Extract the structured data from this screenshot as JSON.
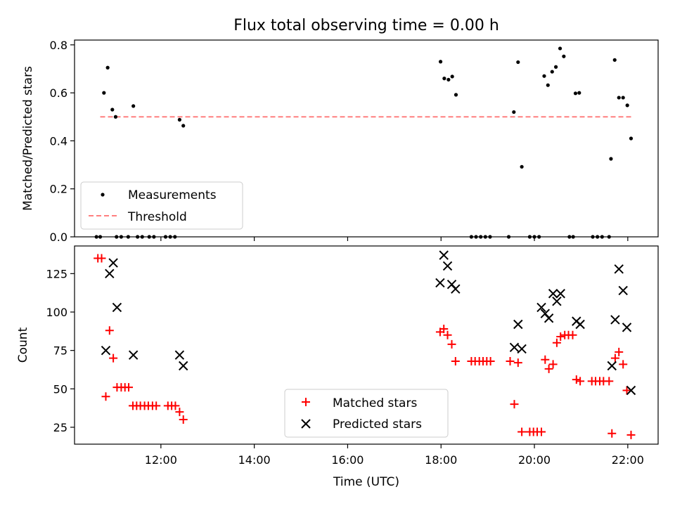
{
  "title": "Flux total observing time = 0.00 h",
  "chart_data": [
    {
      "type": "scatter",
      "ylabel": "Matched/Predicted stars",
      "ylim": [
        0,
        0.82
      ],
      "yticks": [
        "0.0",
        "0.2",
        "0.4",
        "0.6",
        "0.8"
      ],
      "xlim_hours": [
        10.15,
        22.65
      ],
      "legend": {
        "placement": "lower-left",
        "entries": [
          "Measurements",
          "Threshold"
        ]
      },
      "threshold": {
        "name": "Threshold",
        "value": 0.5,
        "x_range_hours": [
          10.7,
          22.1
        ],
        "color": "#ff7f7f"
      },
      "series": [
        {
          "name": "Measurements",
          "color": "#000000",
          "points": [
            [
              10.78,
              0.6
            ],
            [
              10.86,
              0.705
            ],
            [
              10.96,
              0.53
            ],
            [
              11.03,
              0.5
            ],
            [
              11.41,
              0.545
            ],
            [
              12.4,
              0.488
            ],
            [
              12.48,
              0.463
            ],
            [
              17.99,
              0.73
            ],
            [
              18.07,
              0.66
            ],
            [
              18.16,
              0.655
            ],
            [
              18.24,
              0.668
            ],
            [
              18.32,
              0.592
            ],
            [
              19.56,
              0.52
            ],
            [
              19.65,
              0.728
            ],
            [
              19.73,
              0.292
            ],
            [
              20.21,
              0.67
            ],
            [
              20.29,
              0.632
            ],
            [
              20.38,
              0.688
            ],
            [
              20.46,
              0.708
            ],
            [
              20.55,
              0.785
            ],
            [
              20.63,
              0.752
            ],
            [
              20.88,
              0.598
            ],
            [
              20.96,
              0.6
            ],
            [
              21.64,
              0.325
            ],
            [
              21.72,
              0.737
            ],
            [
              21.81,
              0.58
            ],
            [
              21.9,
              0.58
            ],
            [
              21.99,
              0.548
            ],
            [
              22.07,
              0.41
            ],
            [
              10.62,
              0
            ],
            [
              10.7,
              0
            ],
            [
              11.05,
              0
            ],
            [
              11.15,
              0
            ],
            [
              11.3,
              0
            ],
            [
              11.5,
              0
            ],
            [
              11.6,
              0
            ],
            [
              11.75,
              0
            ],
            [
              11.85,
              0
            ],
            [
              12.1,
              0
            ],
            [
              12.2,
              0
            ],
            [
              12.3,
              0
            ],
            [
              18.65,
              0
            ],
            [
              18.75,
              0
            ],
            [
              18.85,
              0
            ],
            [
              18.95,
              0
            ],
            [
              19.05,
              0
            ],
            [
              19.45,
              0
            ],
            [
              19.9,
              0
            ],
            [
              20.0,
              0
            ],
            [
              20.1,
              0
            ],
            [
              20.75,
              0
            ],
            [
              20.83,
              0
            ],
            [
              21.25,
              0
            ],
            [
              21.35,
              0
            ],
            [
              21.45,
              0
            ],
            [
              21.6,
              0
            ]
          ]
        }
      ]
    },
    {
      "type": "scatter",
      "xlabel": "Time (UTC)",
      "ylabel": "Count",
      "ylim": [
        14,
        143
      ],
      "yticks": [
        "25",
        "50",
        "75",
        "100",
        "125"
      ],
      "xticks": [
        "12:00",
        "14:00",
        "16:00",
        "18:00",
        "20:00",
        "22:00"
      ],
      "xlim_hours": [
        10.15,
        22.65
      ],
      "legend": {
        "placement": "lower-center",
        "entries": [
          "Matched stars",
          "Predicted stars"
        ]
      },
      "series": [
        {
          "name": "Matched stars",
          "marker": "plus",
          "color": "#ff0000",
          "points": [
            [
              10.65,
              135
            ],
            [
              10.73,
              135
            ],
            [
              10.82,
              45
            ],
            [
              10.9,
              88
            ],
            [
              10.98,
              70
            ],
            [
              11.06,
              51
            ],
            [
              11.15,
              51
            ],
            [
              11.23,
              51
            ],
            [
              11.31,
              51
            ],
            [
              11.4,
              39
            ],
            [
              11.48,
              39
            ],
            [
              11.56,
              39
            ],
            [
              11.65,
              39
            ],
            [
              11.73,
              39
            ],
            [
              11.82,
              39
            ],
            [
              11.9,
              39
            ],
            [
              12.15,
              39
            ],
            [
              12.23,
              39
            ],
            [
              12.31,
              39
            ],
            [
              12.4,
              35
            ],
            [
              12.48,
              30
            ],
            [
              17.98,
              87
            ],
            [
              18.06,
              89
            ],
            [
              18.14,
              85
            ],
            [
              18.23,
              79
            ],
            [
              18.31,
              68
            ],
            [
              18.65,
              68
            ],
            [
              18.73,
              68
            ],
            [
              18.82,
              68
            ],
            [
              18.9,
              68
            ],
            [
              18.98,
              68
            ],
            [
              19.06,
              68
            ],
            [
              19.48,
              68
            ],
            [
              19.57,
              40
            ],
            [
              19.65,
              67
            ],
            [
              19.73,
              22
            ],
            [
              19.9,
              22
            ],
            [
              19.98,
              22
            ],
            [
              20.06,
              22
            ],
            [
              20.15,
              22
            ],
            [
              20.23,
              69
            ],
            [
              20.31,
              63
            ],
            [
              20.4,
              66
            ],
            [
              20.48,
              80
            ],
            [
              20.56,
              84
            ],
            [
              20.65,
              85
            ],
            [
              20.73,
              85
            ],
            [
              20.82,
              85
            ],
            [
              20.9,
              56
            ],
            [
              20.98,
              55
            ],
            [
              21.23,
              55
            ],
            [
              21.31,
              55
            ],
            [
              21.4,
              55
            ],
            [
              21.48,
              55
            ],
            [
              21.6,
              55
            ],
            [
              21.66,
              21
            ],
            [
              21.73,
              70
            ],
            [
              21.81,
              74
            ],
            [
              21.9,
              66
            ],
            [
              21.98,
              49
            ],
            [
              22.07,
              20
            ]
          ]
        },
        {
          "name": "Predicted stars",
          "marker": "x",
          "color": "#000000",
          "points": [
            [
              10.82,
              75
            ],
            [
              10.9,
              125
            ],
            [
              10.98,
              132
            ],
            [
              11.06,
              103
            ],
            [
              11.41,
              72
            ],
            [
              12.4,
              72
            ],
            [
              12.48,
              65
            ],
            [
              17.98,
              119
            ],
            [
              18.06,
              137
            ],
            [
              18.14,
              130
            ],
            [
              18.23,
              118
            ],
            [
              18.31,
              115
            ],
            [
              19.57,
              77
            ],
            [
              19.65,
              92
            ],
            [
              19.73,
              76
            ],
            [
              20.15,
              103
            ],
            [
              20.23,
              99
            ],
            [
              20.31,
              96
            ],
            [
              20.4,
              112
            ],
            [
              20.48,
              107
            ],
            [
              20.56,
              112
            ],
            [
              20.9,
              94
            ],
            [
              20.98,
              92
            ],
            [
              21.66,
              65
            ],
            [
              21.73,
              95
            ],
            [
              21.81,
              128
            ],
            [
              21.9,
              114
            ],
            [
              21.98,
              90
            ],
            [
              22.07,
              49
            ]
          ]
        }
      ]
    }
  ]
}
